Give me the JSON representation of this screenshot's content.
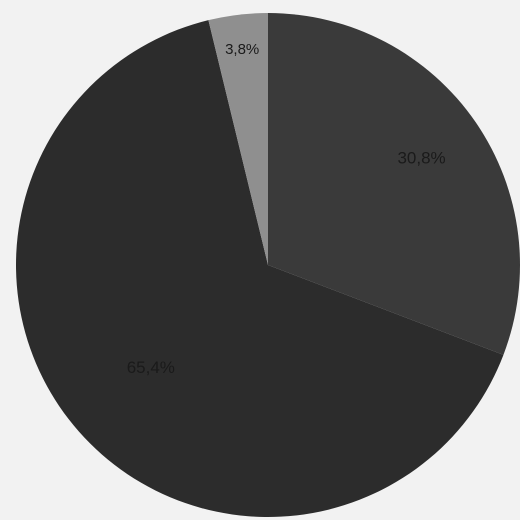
{
  "chart_data": {
    "type": "pie",
    "slices": [
      {
        "label": "30,8%",
        "value": 30.8,
        "color": "#3a3a3a"
      },
      {
        "label": "65,4%",
        "value": 65.4,
        "color": "#2c2c2c"
      },
      {
        "label": "3,8%",
        "value": 3.8,
        "color": "#8f8f8f"
      }
    ],
    "start_angle_deg": 0,
    "direction": "clockwise",
    "title": "",
    "legend": "none"
  }
}
